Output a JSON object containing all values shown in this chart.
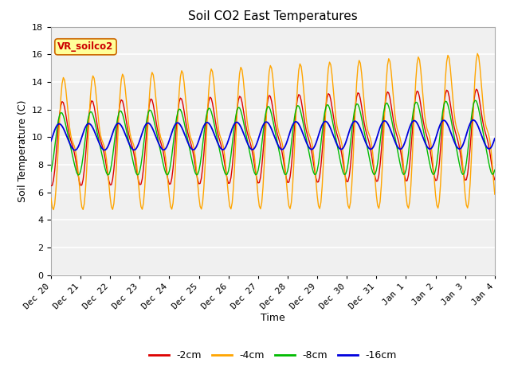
{
  "title": "Soil CO2 East Temperatures",
  "xlabel": "Time",
  "ylabel": "Soil Temperature (C)",
  "ylim": [
    0,
    18
  ],
  "yticks": [
    0,
    2,
    4,
    6,
    8,
    10,
    12,
    14,
    16,
    18
  ],
  "legend_label": "VR_soilco2",
  "series_labels": [
    "-2cm",
    "-4cm",
    "-8cm",
    "-16cm"
  ],
  "series_colors": [
    "#dd0000",
    "#ffa500",
    "#00bb00",
    "#0000dd"
  ],
  "fig_facecolor": "#ffffff",
  "plot_facecolor": "#f0f0f0",
  "title_fontsize": 11,
  "axis_fontsize": 9,
  "tick_fontsize": 8,
  "tick_labels": [
    "Dec 20",
    "Dec 21",
    "Dec 22",
    "Dec 23",
    "Dec 24",
    "Dec 25",
    "Dec 26",
    "Dec 27",
    "Dec 28",
    "Dec 29",
    "Dec 30",
    "Dec 31",
    "Jan 1",
    "Jan 2",
    "Jan 3",
    "Jan 4"
  ]
}
